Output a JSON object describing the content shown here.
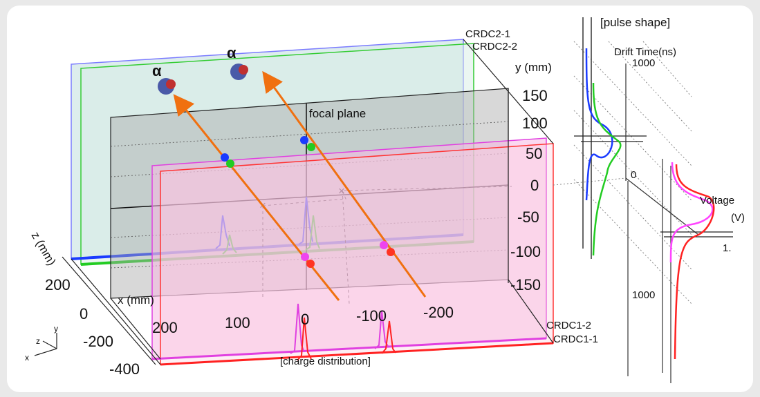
{
  "labels": {
    "pulse_shape": "[pulse shape]",
    "charge_distribution": "[charge distribution]",
    "focal_plane": "focal plane",
    "alphas": [
      "α",
      "α"
    ]
  },
  "detectors": [
    "CRDC2-1",
    "CRDC2-2",
    "CRDC1-2",
    "CRDC1-1"
  ],
  "y_axis": {
    "label": "y (mm)",
    "ticks": [
      "150",
      "100",
      "50",
      "0",
      "-50",
      "-100",
      "-150"
    ]
  },
  "x_axis": {
    "label": "x (mm)",
    "ticks": [
      "200",
      "100",
      "0",
      "-100",
      "-200"
    ]
  },
  "z_axis": {
    "label": "z (mm)",
    "ticks": [
      "200",
      "0",
      "-200",
      "-400"
    ]
  },
  "drift_axis": {
    "label": "Drift Time(ns)",
    "ticks": [
      "1000",
      "0",
      "1000"
    ]
  },
  "voltage_axis": {
    "label": [
      "Voltage",
      "(V)"
    ],
    "ticks": [
      "1."
    ]
  },
  "orientation": [
    "z",
    "y",
    "x"
  ]
}
